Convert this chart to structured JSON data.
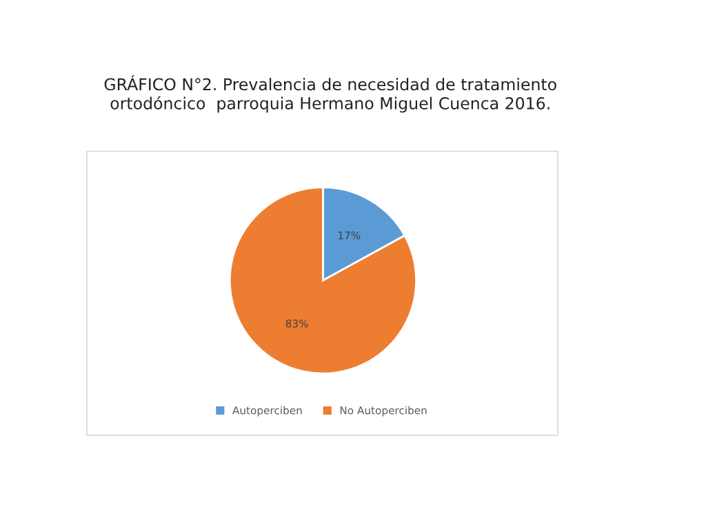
{
  "chart_data": {
    "type": "pie",
    "title": "GRÁFICO N°2. Prevalencia de necesidad de tratamiento\nortodóncico  parroquia Hermano Miguel Cuenca 2016.",
    "categories": [
      "Autoperciben",
      "No Autoperciben"
    ],
    "values": [
      17,
      83
    ],
    "colors": [
      "#5b9bd5",
      "#ed7d31"
    ],
    "value_labels": [
      "17%",
      "83%"
    ],
    "legend": "bottom"
  }
}
